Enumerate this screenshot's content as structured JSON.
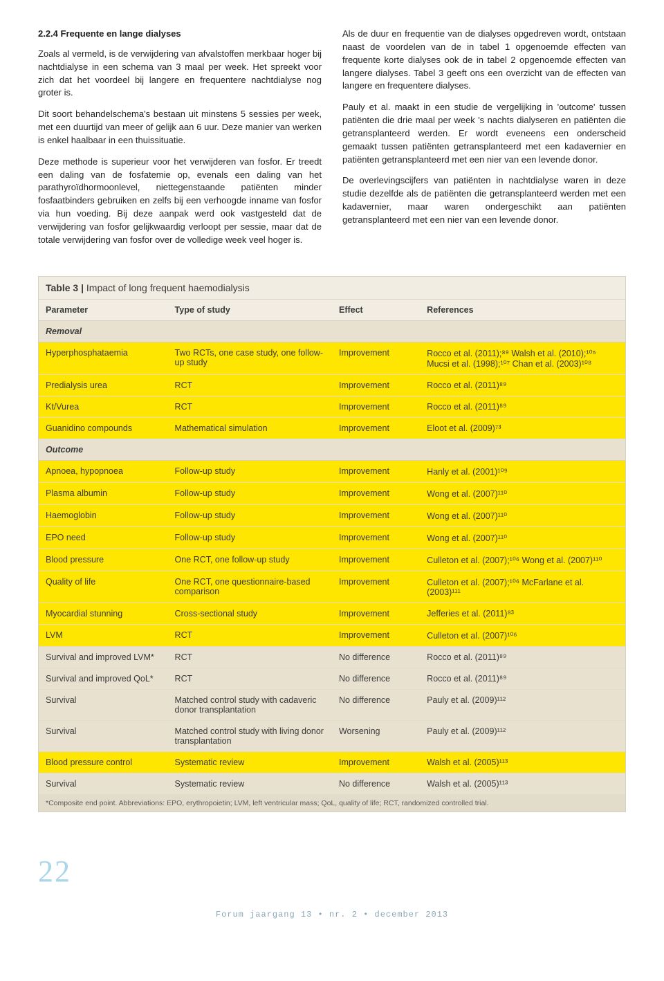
{
  "section_title": "2.2.4 Frequente en lange dialyses",
  "left_paragraphs": [
    "Zoals al vermeld, is de verwijdering van afvalstoffen merkbaar hoger bij nachtdialyse in een schema van 3 maal per week. Het spreekt voor zich dat het voordeel bij langere en frequentere nachtdialyse nog groter is.",
    "Dit soort behandelschema's bestaan uit minstens 5 sessies per week, met een duurtijd van meer of gelijk aan 6 uur. Deze manier van werken is enkel haalbaar in een thuissituatie.",
    "Deze methode is superieur voor het verwijderen van fosfor. Er treedt een daling van de fosfatemie op, evenals een daling van het parathyroïdhormoonlevel, niettegenstaande patiënten minder fosfaatbinders gebruiken en zelfs bij een verhoogde inname van fosfor via hun voeding. Bij deze aanpak werd ook vastgesteld dat de verwijdering van fosfor gelijkwaardig verloopt per sessie, maar dat de totale verwijdering van fosfor over de volledige week veel hoger is."
  ],
  "right_paragraphs": [
    "Als de duur en frequentie van de dialyses opgedreven wordt, ontstaan naast de voordelen van de in tabel 1 opgenoemde effecten van frequente korte dialyses ook de in tabel 2 opgenoemde effecten van langere dialyses. Tabel 3 geeft ons een overzicht van de effecten van langere en frequentere dialyses.",
    "Pauly et al. maakt in een studie de vergelijking in 'outcome' tussen patiënten die drie maal per week 's nachts dialyseren en patiënten die getransplanteerd werden. Er wordt eveneens een onderscheid gemaakt tussen patiënten getransplanteerd met een kadavernier en patiënten getransplanteerd met een nier van een levende donor.",
    "De overlevingscijfers van patiënten in nachtdialyse waren in deze studie dezelfde als de patiënten die getransplanteerd werden met een kadavernier, maar waren ondergeschikt aan patiënten getransplanteerd met een nier van een levende donor."
  ],
  "table": {
    "title_prefix": "Table 3 | ",
    "title": "Impact of long frequent haemodialysis",
    "headers": [
      "Parameter",
      "Type of study",
      "Effect",
      "References"
    ],
    "sections": [
      {
        "group": "Removal",
        "rows": [
          {
            "hl": true,
            "cells": [
              "Hyperphosphataemia",
              "Two RCTs, one case study, one follow-up study",
              "Improvement",
              "Rocco et al. (2011);⁸⁹ Walsh et al. (2010);¹⁰⁵ Mucsi et al. (1998);¹⁰⁷ Chan et al. (2003)¹⁰⁸"
            ]
          },
          {
            "hl": true,
            "cells": [
              "Predialysis urea",
              "RCT",
              "Improvement",
              "Rocco et al. (2011)⁸⁹"
            ]
          },
          {
            "hl": true,
            "cells": [
              "Kt/Vurea",
              "RCT",
              "Improvement",
              "Rocco et al. (2011)⁸⁹"
            ]
          },
          {
            "hl": true,
            "cells": [
              "Guanidino compounds",
              "Mathematical simulation",
              "Improvement",
              "Eloot et al. (2009)⁷³"
            ]
          }
        ]
      },
      {
        "group": "Outcome",
        "rows": [
          {
            "hl": true,
            "cells": [
              "Apnoea, hypopnoea",
              "Follow-up study",
              "Improvement",
              "Hanly et al. (2001)¹⁰⁹"
            ]
          },
          {
            "hl": true,
            "cells": [
              "Plasma albumin",
              "Follow-up study",
              "Improvement",
              "Wong et al. (2007)¹¹⁰"
            ]
          },
          {
            "hl": true,
            "cells": [
              "Haemoglobin",
              "Follow-up study",
              "Improvement",
              "Wong et al. (2007)¹¹⁰"
            ]
          },
          {
            "hl": true,
            "cells": [
              "EPO need",
              "Follow-up study",
              "Improvement",
              "Wong et al. (2007)¹¹⁰"
            ]
          },
          {
            "hl": true,
            "cells": [
              "Blood pressure",
              "One RCT, one follow-up study",
              "Improvement",
              "Culleton et al. (2007);¹⁰⁶ Wong et al. (2007)¹¹⁰"
            ]
          },
          {
            "hl": true,
            "cells": [
              "Quality of life",
              "One RCT, one questionnaire-based comparison",
              "Improvement",
              "Culleton et al. (2007);¹⁰⁶ McFarlane et al. (2003)¹¹¹"
            ]
          },
          {
            "hl": true,
            "cells": [
              "Myocardial stunning",
              "Cross-sectional study",
              "Improvement",
              "Jefferies et al. (2011)⁸³"
            ]
          },
          {
            "hl": true,
            "cells": [
              "LVM",
              "RCT",
              "Improvement",
              "Culleton et al. (2007)¹⁰⁶"
            ]
          },
          {
            "hl": false,
            "cells": [
              "Survival and improved LVM*",
              "RCT",
              "No difference",
              "Rocco et al. (2011)⁸⁹"
            ]
          },
          {
            "hl": false,
            "cells": [
              "Survival and improved QoL*",
              "RCT",
              "No difference",
              "Rocco et al. (2011)⁸⁹"
            ]
          },
          {
            "hl": false,
            "cells": [
              "Survival",
              "Matched control study with cadaveric donor transplantation",
              "No difference",
              "Pauly et al. (2009)¹¹²"
            ]
          },
          {
            "hl": false,
            "cells": [
              "Survival",
              "Matched control study with living donor transplantation",
              "Worsening",
              "Pauly et al. (2009)¹¹²"
            ]
          },
          {
            "hl": true,
            "cells": [
              "Blood pressure control",
              "Systematic review",
              "Improvement",
              "Walsh et al. (2005)¹¹³"
            ]
          },
          {
            "hl": false,
            "cells": [
              "Survival",
              "Systematic review",
              "No difference",
              "Walsh et al. (2005)¹¹³"
            ]
          }
        ]
      }
    ],
    "footnote": "*Composite end point. Abbreviations: EPO, erythropoietin; LVM, left ventricular mass; QoL, quality of life; RCT, randomized controlled trial."
  },
  "pagenum": "22",
  "footer": "Forum jaargang 13 • nr. 2 • december 2013"
}
